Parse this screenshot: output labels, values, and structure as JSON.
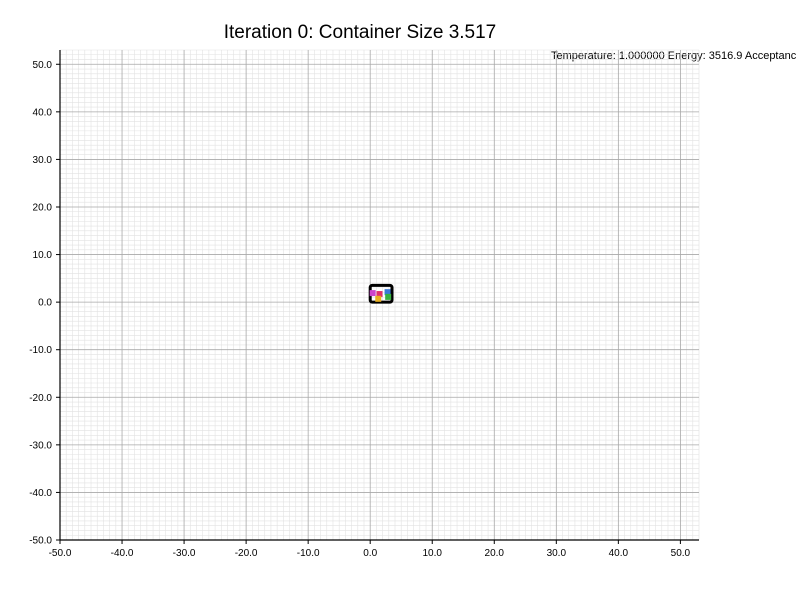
{
  "chart_data": {
    "type": "scatter",
    "title": "Iteration 0: Container Size 3.517",
    "status_text": "Temperature: 1.000000 Energy: 3516.9 Acceptanc",
    "xlabel": "",
    "ylabel": "",
    "xlim": [
      -50,
      53
    ],
    "ylim": [
      -50,
      53
    ],
    "x_ticks": [
      -50,
      -40,
      -30,
      -20,
      -10,
      0,
      10,
      20,
      30,
      40,
      50
    ],
    "y_ticks": [
      -50,
      -40,
      -30,
      -20,
      -10,
      0,
      10,
      20,
      30,
      40,
      50
    ],
    "x_tick_labels": [
      "-50.0",
      "-40.0",
      "-30.0",
      "-20.0",
      "-10.0",
      "0.0",
      "10.0",
      "20.0",
      "30.0",
      "40.0",
      "50.0"
    ],
    "y_tick_labels": [
      "-50.0",
      "-40.0",
      "-30.0",
      "-20.0",
      "-10.0",
      "0.0",
      "10.0",
      "20.0",
      "30.0",
      "40.0",
      "50.0"
    ],
    "grid": {
      "major": true,
      "minor": true,
      "major_step": 10,
      "minor_step": 1
    },
    "container": {
      "x": [
        0,
        3.517
      ],
      "y": [
        0,
        3.517
      ]
    },
    "points": [
      {
        "x": 0.4,
        "y": 1.9,
        "color": "#cc44cc"
      },
      {
        "x": 1.5,
        "y": 1.7,
        "color": "#e0306a"
      },
      {
        "x": 2.8,
        "y": 2.1,
        "color": "#3a7ad8"
      },
      {
        "x": 1.3,
        "y": 0.7,
        "color": "#e8b020"
      },
      {
        "x": 2.9,
        "y": 1.1,
        "color": "#38b040"
      }
    ]
  }
}
